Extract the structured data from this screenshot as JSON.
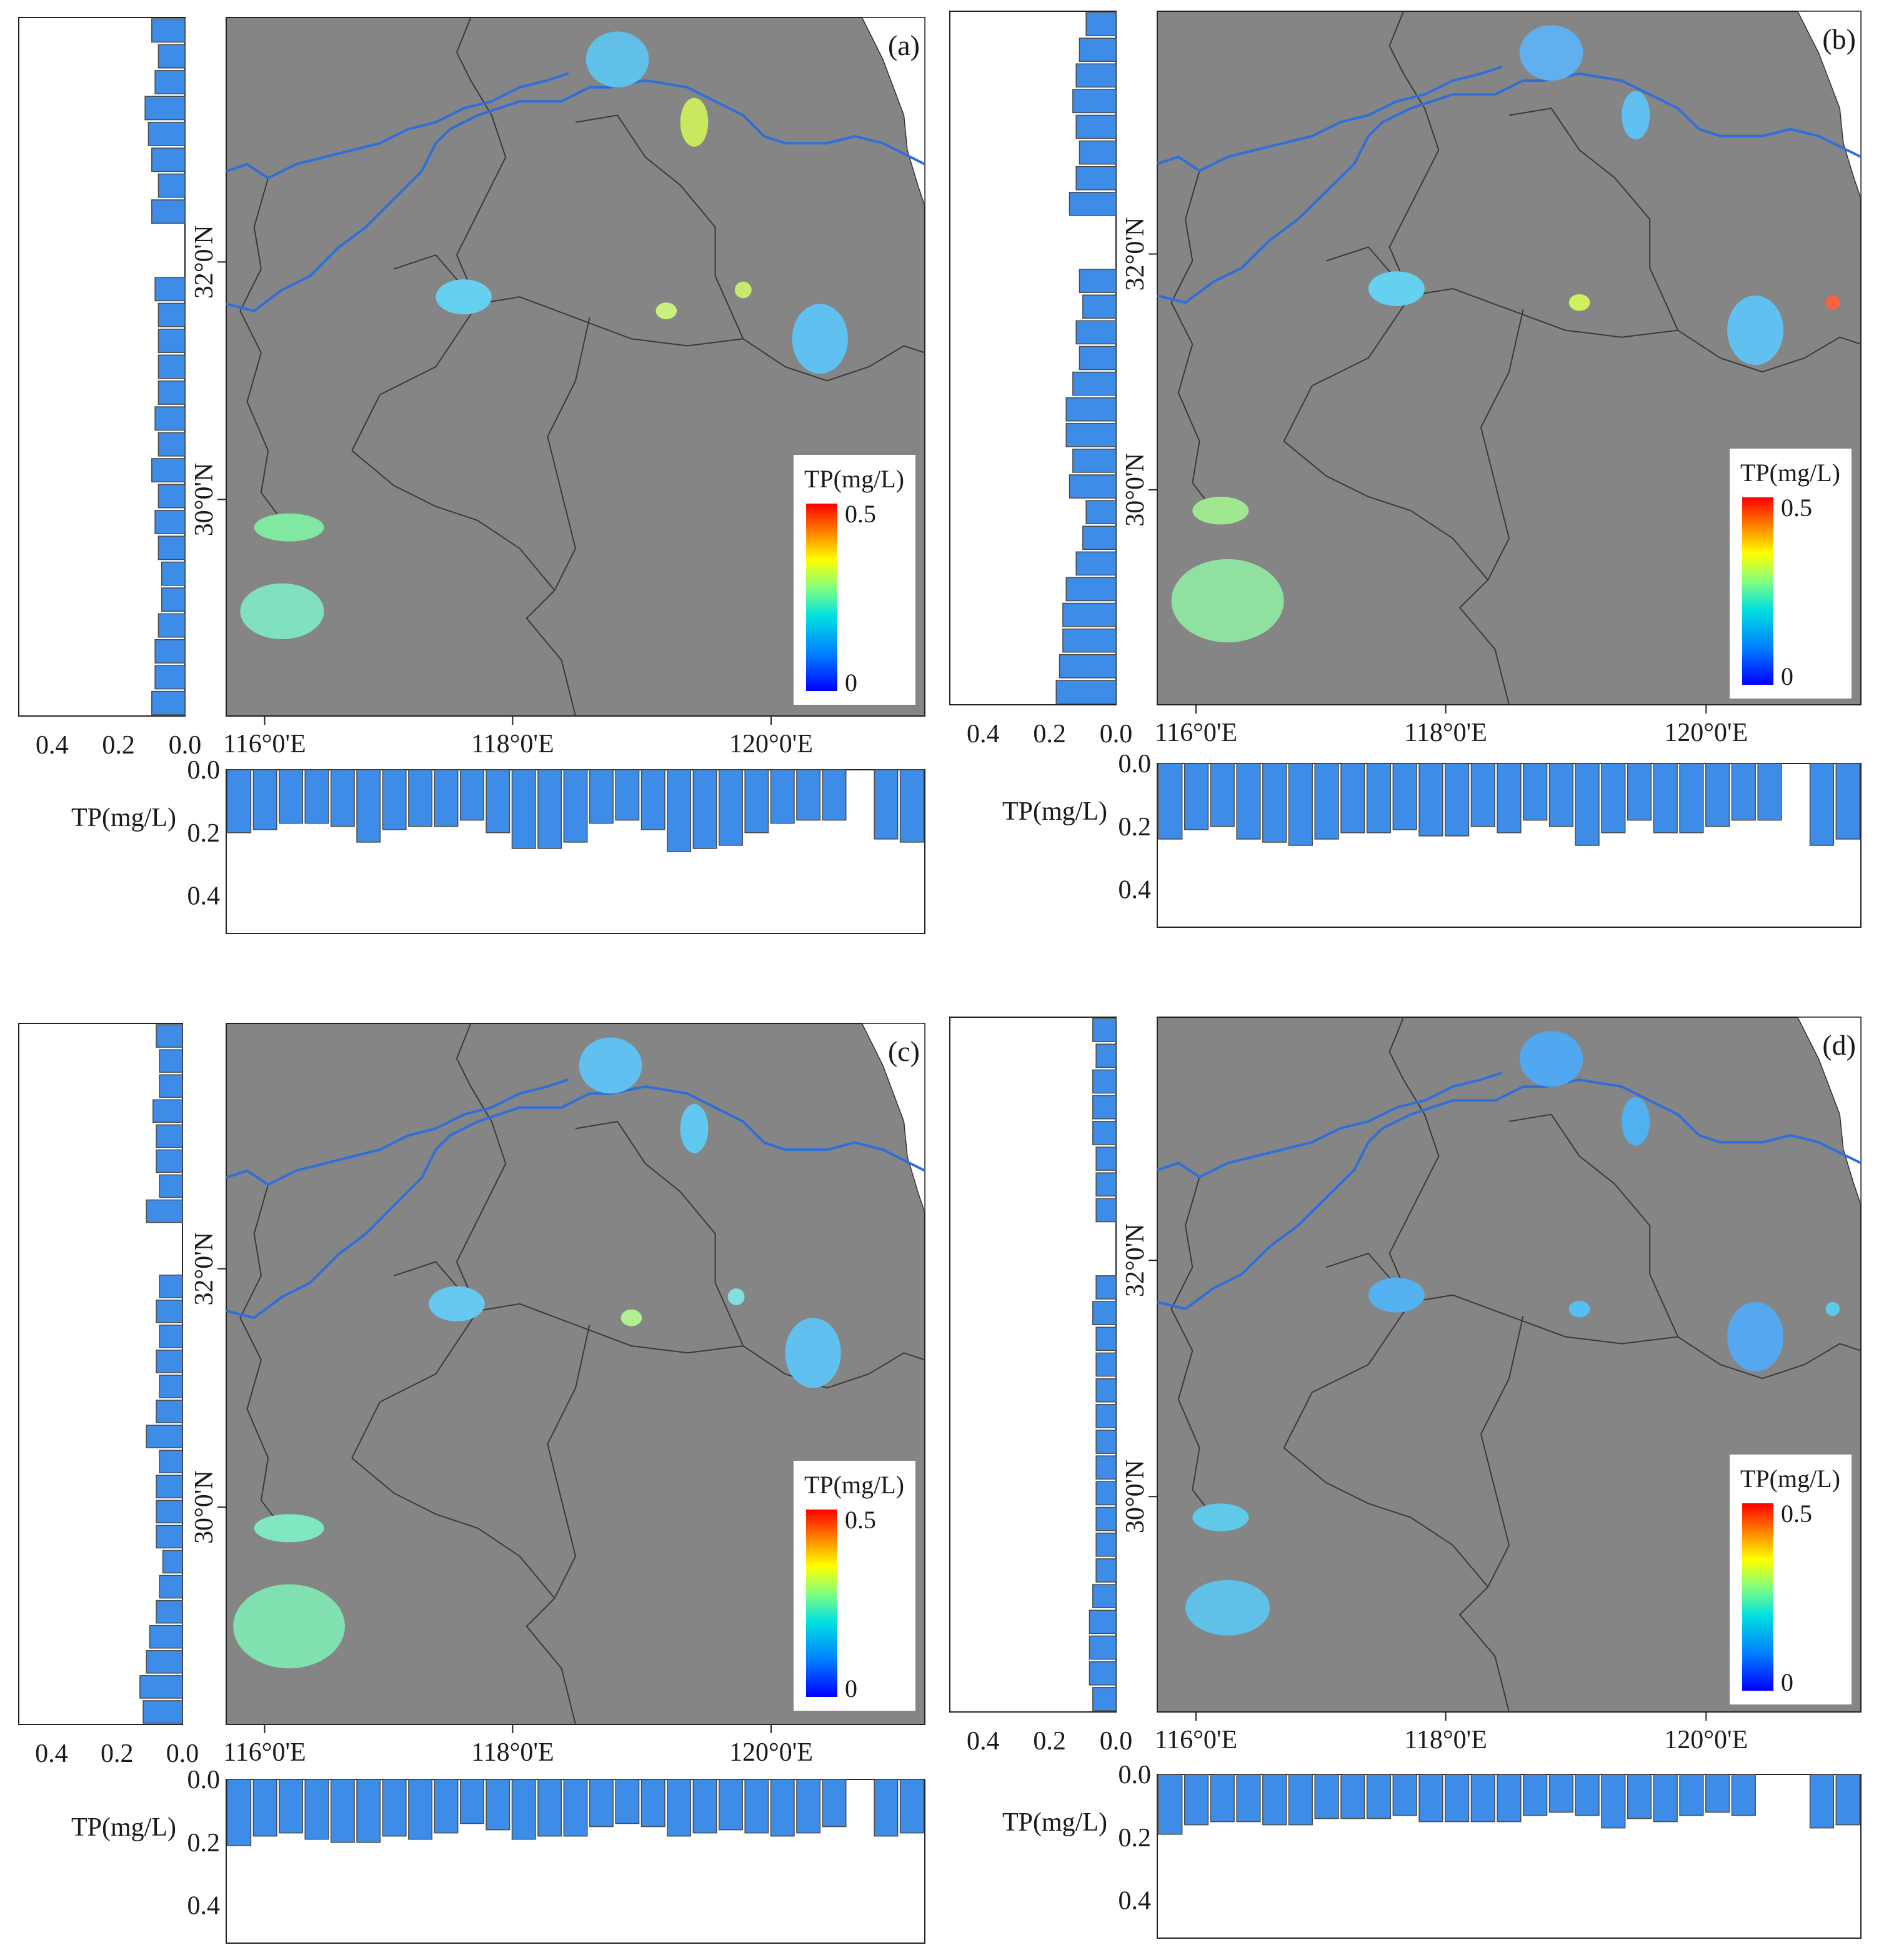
{
  "figure": {
    "panels": [
      {
        "id": "a",
        "panel_label": "(a)",
        "legend": {
          "title": "TP(mg/L)",
          "max_label": "0.5",
          "min_label": "0"
        },
        "lon_ticks": [
          "116°0'E",
          "118°0'E",
          "120°0'E"
        ],
        "lat_ticks": [
          "32°0'N",
          "30°0'N"
        ],
        "left_axis_ticks": [
          "0.4",
          "0.2",
          "0.0"
        ],
        "bottom_axis_title": "TP(mg/L)",
        "bottom_axis_ticks": [
          "0.0",
          "0.2",
          "0.4"
        ],
        "lat_profile_values": [
          0.1,
          0.08,
          0.09,
          0.12,
          0.11,
          0.1,
          0.08,
          0.1,
          null,
          null,
          0.09,
          0.08,
          0.08,
          0.08,
          0.08,
          0.09,
          0.08,
          0.1,
          0.08,
          0.09,
          0.08,
          0.07,
          0.07,
          0.08,
          0.09,
          0.09,
          0.1
        ],
        "lon_profile_values": [
          0.2,
          0.19,
          0.17,
          0.17,
          0.18,
          0.23,
          0.19,
          0.18,
          0.18,
          0.16,
          0.2,
          0.25,
          0.25,
          0.23,
          0.17,
          0.16,
          0.19,
          0.26,
          0.25,
          0.24,
          0.2,
          0.17,
          0.16,
          0.16,
          null,
          0.22,
          0.23
        ]
      },
      {
        "id": "b",
        "panel_label": "(b)",
        "legend": {
          "title": "TP(mg/L)",
          "max_label": "0.5",
          "min_label": "0"
        },
        "lon_ticks": [
          "116°0'E",
          "118°0'E",
          "120°0'E"
        ],
        "lat_ticks": [
          "32°0'N",
          "30°0'N"
        ],
        "left_axis_ticks": [
          "0.4",
          "0.2",
          "0.0"
        ],
        "bottom_axis_title": "TP(mg/L)",
        "bottom_axis_ticks": [
          "0.0",
          "0.2",
          "0.4"
        ],
        "lat_profile_values": [
          0.09,
          0.11,
          0.12,
          0.13,
          0.12,
          0.11,
          0.12,
          0.14,
          null,
          null,
          0.11,
          0.1,
          0.12,
          0.11,
          0.13,
          0.15,
          0.15,
          0.13,
          0.14,
          0.09,
          0.1,
          0.12,
          0.15,
          0.16,
          0.16,
          0.17,
          0.18
        ],
        "lon_profile_values": [
          0.24,
          0.21,
          0.2,
          0.24,
          0.25,
          0.26,
          0.24,
          0.22,
          0.22,
          0.21,
          0.23,
          0.23,
          0.2,
          0.22,
          0.18,
          0.2,
          0.26,
          0.22,
          0.18,
          0.22,
          0.22,
          0.2,
          0.18,
          0.18,
          null,
          0.26,
          0.24
        ]
      },
      {
        "id": "c",
        "panel_label": "(c)",
        "legend": {
          "title": "TP(mg/L)",
          "max_label": "0.5",
          "min_label": "0"
        },
        "lon_ticks": [
          "116°0'E",
          "118°0'E",
          "120°0'E"
        ],
        "lat_ticks": [
          "32°0'N",
          "30°0'N"
        ],
        "left_axis_ticks": [
          "0.4",
          "0.2",
          "0.0"
        ],
        "bottom_axis_title": "TP(mg/L)",
        "bottom_axis_ticks": [
          "0.0",
          "0.2",
          "0.4"
        ],
        "lat_profile_values": [
          0.08,
          0.07,
          0.07,
          0.09,
          0.08,
          0.08,
          0.07,
          0.11,
          null,
          null,
          0.07,
          0.08,
          0.07,
          0.08,
          0.07,
          0.08,
          0.11,
          0.07,
          0.08,
          0.08,
          0.08,
          0.06,
          0.07,
          0.08,
          0.1,
          0.11,
          0.13,
          0.12
        ],
        "lon_profile_values": [
          0.21,
          0.18,
          0.17,
          0.19,
          0.2,
          0.2,
          0.18,
          0.19,
          0.17,
          0.14,
          0.16,
          0.19,
          0.18,
          0.18,
          0.15,
          0.14,
          0.15,
          0.18,
          0.17,
          0.16,
          0.17,
          0.18,
          0.17,
          0.15,
          null,
          0.18,
          0.17
        ]
      },
      {
        "id": "d",
        "panel_label": "(d)",
        "legend": {
          "title": "TP(mg/L)",
          "max_label": "0.5",
          "min_label": "0"
        },
        "lon_ticks": [
          "116°0'E",
          "118°0'E",
          "120°0'E"
        ],
        "lat_ticks": [
          "32°0'N",
          "30°0'N"
        ],
        "left_axis_ticks": [
          "0.4",
          "0.2",
          "0.0"
        ],
        "bottom_axis_title": "TP(mg/L)",
        "bottom_axis_ticks": [
          "0.0",
          "0.2",
          "0.4"
        ],
        "lat_profile_values": [
          0.07,
          0.06,
          0.07,
          0.07,
          0.07,
          0.06,
          0.06,
          0.06,
          null,
          null,
          0.06,
          0.07,
          0.06,
          0.06,
          0.06,
          0.06,
          0.06,
          0.06,
          0.06,
          0.06,
          0.06,
          0.06,
          0.07,
          0.08,
          0.08,
          0.08,
          0.07
        ],
        "lon_profile_values": [
          0.19,
          0.16,
          0.15,
          0.15,
          0.16,
          0.16,
          0.14,
          0.14,
          0.14,
          0.13,
          0.15,
          0.15,
          0.15,
          0.15,
          0.13,
          0.12,
          0.13,
          0.17,
          0.14,
          0.15,
          0.13,
          0.12,
          0.13,
          null,
          null,
          0.17,
          0.16
        ]
      }
    ],
    "colors": {
      "bar_fill": "#3d8de8",
      "bar_stroke": "#4a4a4a",
      "map_background": "#858585",
      "sea": "#ffffff",
      "river": "#2f6fd9",
      "boundary": "#3a3a3a"
    }
  }
}
